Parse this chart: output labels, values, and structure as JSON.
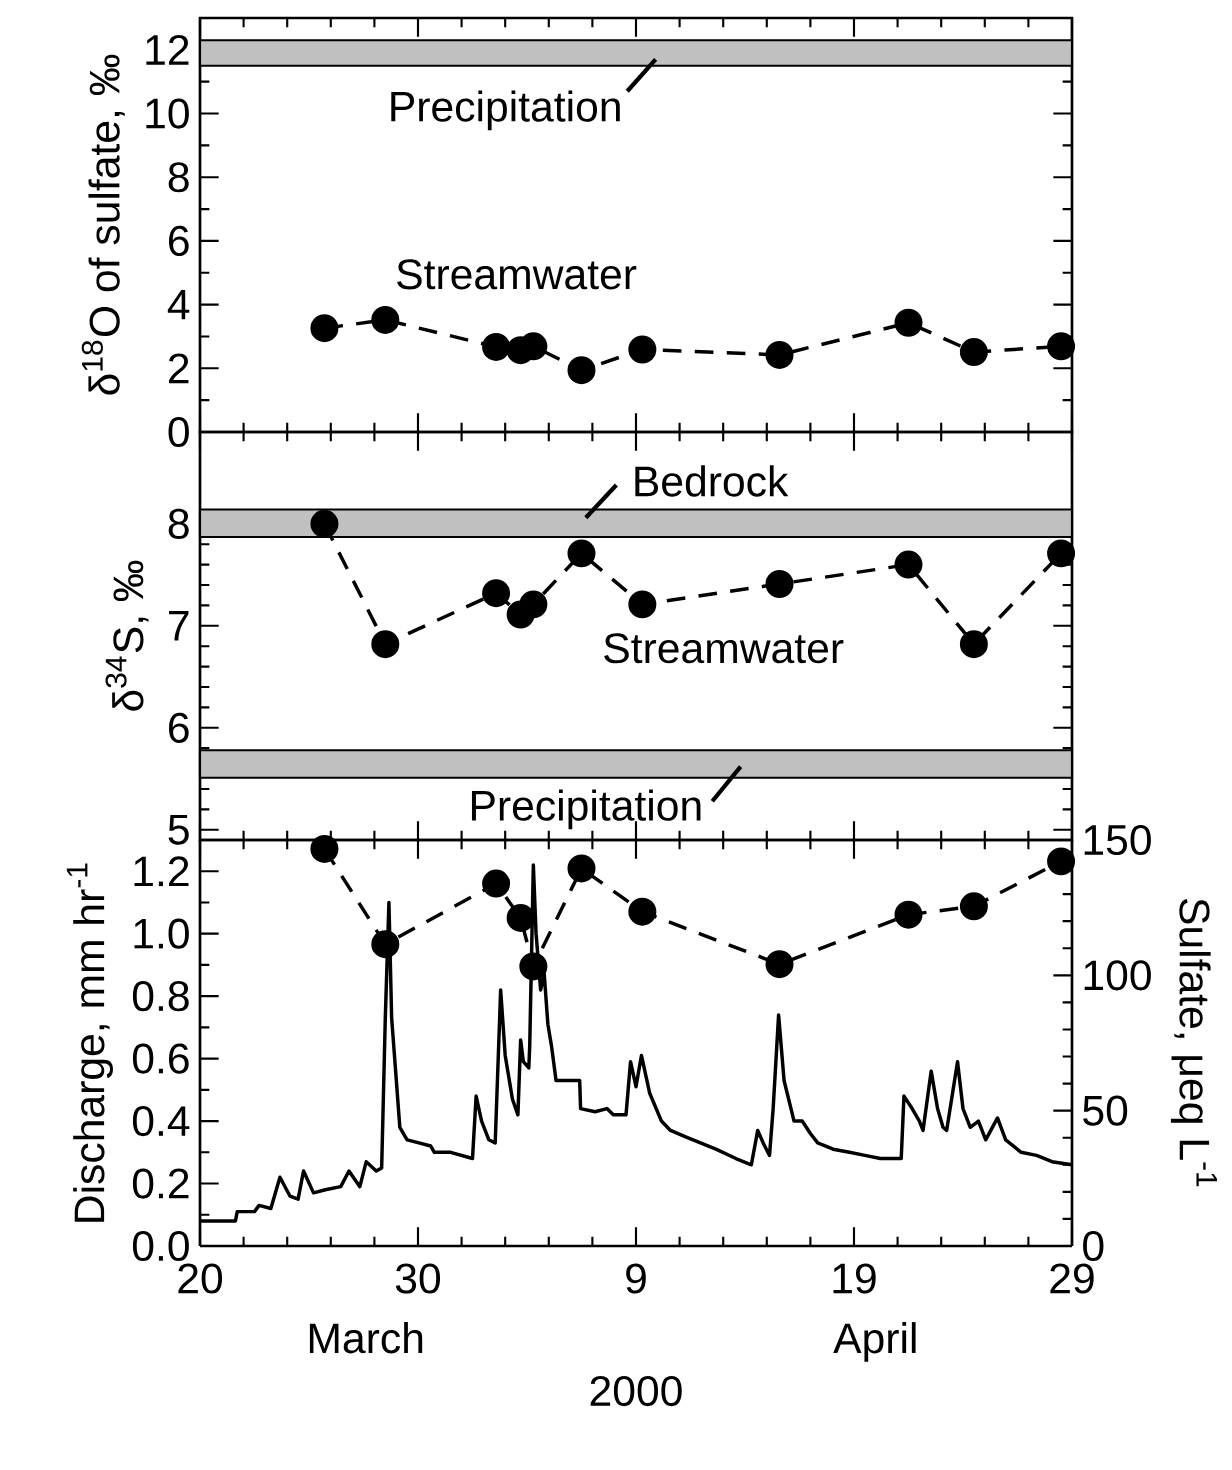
{
  "chart_data": [
    {
      "type": "line",
      "ylabel": "δ$^{18}$O of sulfate, ‰",
      "xlim": [
        "2000-03-20",
        "2000-04-29"
      ],
      "xticks": [
        {
          "value": "2000-03-20",
          "label": null
        },
        {
          "value": "2000-03-30",
          "label": null
        },
        {
          "value": "2000-04-09",
          "label": null
        },
        {
          "value": "2000-04-19",
          "label": null
        },
        {
          "value": "2000-04-29",
          "label": null
        }
      ],
      "ylim": [
        0,
        13
      ],
      "yticks": [
        0,
        2,
        4,
        6,
        8,
        10,
        12
      ],
      "tick_labels": "y",
      "marker": "circle",
      "line_style": "dashed",
      "bands": [
        {
          "axis": "y",
          "from": 11.5,
          "to": 12.3,
          "label": "Precipitation",
          "color": "#c0c0c0"
        }
      ],
      "series": [
        {
          "name": "Streamwater",
          "color": "#000000",
          "x": [
            "2000-03-25T17:00",
            "2000-03-28T12:00",
            "2000-04-02T14:00",
            "2000-04-03T17:00",
            "2000-04-04T07:00",
            "2000-04-06T12:00",
            "2000-04-09T07:00",
            "2000-04-15T14:00",
            "2000-04-21T12:00",
            "2000-04-24T12:00",
            "2000-04-28T12:00"
          ],
          "values": [
            3.26,
            3.52,
            2.67,
            2.57,
            2.69,
            1.94,
            2.59,
            2.42,
            3.43,
            2.51,
            2.69
          ]
        }
      ]
    },
    {
      "type": "line",
      "ylabel": "δ$^{34}$S, ‰",
      "xlim": [
        "2000-03-20",
        "2000-04-29"
      ],
      "xticks": [
        {
          "value": "2000-03-20",
          "label": null
        },
        {
          "value": "2000-03-30",
          "label": null
        },
        {
          "value": "2000-04-09",
          "label": null
        },
        {
          "value": "2000-04-19",
          "label": null
        },
        {
          "value": "2000-04-29",
          "label": null
        }
      ],
      "ylim": [
        4.9,
        8.9
      ],
      "yticks": [
        5,
        6,
        7,
        8
      ],
      "tick_labels": "y",
      "marker": "circle",
      "line_style": "dashed",
      "bands": [
        {
          "axis": "y",
          "from": 7.87,
          "to": 8.14,
          "label": "Bedrock",
          "color": "#c0c0c0"
        },
        {
          "axis": "y",
          "from": 5.51,
          "to": 5.78,
          "label": "Precipitation",
          "color": "#c0c0c0"
        }
      ],
      "series": [
        {
          "name": "Streamwater",
          "color": "#000000",
          "x": [
            "2000-03-25T17:00",
            "2000-03-28T12:00",
            "2000-04-02T14:00",
            "2000-04-03T17:00",
            "2000-04-04T07:00",
            "2000-04-06T12:00",
            "2000-04-09T07:00",
            "2000-04-15T14:00",
            "2000-04-21T12:00",
            "2000-04-24T12:00",
            "2000-04-28T12:00"
          ],
          "values": [
            8.0,
            6.82,
            7.32,
            7.11,
            7.21,
            7.71,
            7.21,
            7.41,
            7.6,
            6.82,
            7.71
          ]
        }
      ]
    },
    {
      "type": "line",
      "xlabel": "2000",
      "ylabel": "Discharge, mm hr$^{-1}$",
      "y2label": "Sulfate, μeq L$^{-1}$",
      "xlim": [
        "2000-03-20",
        "2000-04-29"
      ],
      "xticks": [
        {
          "value": "2000-03-20",
          "label": "20"
        },
        {
          "value": "2000-03-30",
          "label": "30"
        },
        {
          "value": "2000-04-09",
          "label": "9"
        },
        {
          "value": "2000-04-19",
          "label": "19"
        },
        {
          "value": "2000-04-29",
          "label": "29"
        }
      ],
      "ylim": [
        0,
        1.3
      ],
      "yticks": [
        {
          "value": 0,
          "label": "0.0"
        },
        {
          "value": 0.2,
          "label": "0.2"
        },
        {
          "value": 0.4,
          "label": "0.4"
        },
        {
          "value": 0.6,
          "label": "0.6"
        },
        {
          "value": 0.8,
          "label": "0.8"
        },
        {
          "value": 1.0,
          "label": "1.0"
        },
        {
          "value": 1.2,
          "label": "1.2"
        }
      ],
      "y2lim": [
        0,
        150
      ],
      "y2ticks": [
        0,
        50,
        100,
        150
      ],
      "annotations": [
        "March",
        "April"
      ],
      "series": [
        {
          "color": "#000000",
          "marker": "none",
          "line_style": "solid",
          "x": [
            "2000-03-20T00:00",
            "2000-03-21T15:00",
            "2000-03-21T17:00",
            "2000-03-22T12:00",
            "2000-03-22T17:00",
            "2000-03-23T06:00",
            "2000-03-23T16:00",
            "2000-03-24T03:00",
            "2000-03-24T12:00",
            "2000-03-24T18:00",
            "2000-03-25T05:00",
            "2000-03-25T18:00",
            "2000-03-26T11:00",
            "2000-03-26T20:00",
            "2000-03-27T08:00",
            "2000-03-27T15:00",
            "2000-03-28T02:00",
            "2000-03-28T08:00",
            "2000-03-28T12:00",
            "2000-03-28T16:00",
            "2000-03-28T19:00",
            "2000-03-29T04:00",
            "2000-03-29T12:00",
            "2000-03-30T01:00",
            "2000-03-30T14:00",
            "2000-03-30T18:00",
            "2000-03-31T12:00",
            "2000-04-01T12:00",
            "2000-04-01T16:00",
            "2000-04-01T22:00",
            "2000-04-02T06:00",
            "2000-04-02T13:00",
            "2000-04-02T19:00",
            "2000-04-03T00:00",
            "2000-04-03T08:00",
            "2000-04-03T14:00",
            "2000-04-03T17:00",
            "2000-04-03T20:00",
            "2000-04-04T02:00",
            "2000-04-04T03:00",
            "2000-04-04T07:00",
            "2000-04-04T10:00",
            "2000-04-04T15:00",
            "2000-04-04T19:00",
            "2000-04-04T23:00",
            "2000-04-05T03:00",
            "2000-04-05T08:00",
            "2000-04-05T21:00",
            "2000-04-06T10:00",
            "2000-04-06T11:00",
            "2000-04-07T03:00",
            "2000-04-07T16:00",
            "2000-04-07T23:00",
            "2000-04-08T13:00",
            "2000-04-08T18:00",
            "2000-04-09T00:00",
            "2000-04-09T06:00",
            "2000-04-09T15:00",
            "2000-04-10T04:00",
            "2000-04-10T14:00",
            "2000-04-11T06:00",
            "2000-04-11T23:00",
            "2000-04-12T16:00",
            "2000-04-13T14:00",
            "2000-04-14T07:00",
            "2000-04-14T14:00",
            "2000-04-14T20:00",
            "2000-04-15T03:00",
            "2000-04-15T07:00",
            "2000-04-15T13:00",
            "2000-04-15T19:00",
            "2000-04-16T06:00",
            "2000-04-16T15:00",
            "2000-04-17T00:00",
            "2000-04-17T08:00",
            "2000-04-18T01:00",
            "2000-04-18T19:00",
            "2000-04-19T12:00",
            "2000-04-20T05:00",
            "2000-04-20T22:00",
            "2000-04-21T04:00",
            "2000-04-21T07:00",
            "2000-04-21T16:00",
            "2000-04-22T00:00",
            "2000-04-22T04:00",
            "2000-04-22T13:00",
            "2000-04-22T20:00",
            "2000-04-23T02:00",
            "2000-04-23T06:00",
            "2000-04-23T18:00",
            "2000-04-24T00:00",
            "2000-04-24T08:00",
            "2000-04-24T17:00",
            "2000-04-25T01:00",
            "2000-04-25T14:00",
            "2000-04-25T23:00",
            "2000-04-26T16:00",
            "2000-04-27T09:00",
            "2000-04-28T02:00",
            "2000-04-29T00:00"
          ],
          "values": [
            0.08,
            0.08,
            0.11,
            0.11,
            0.13,
            0.12,
            0.22,
            0.16,
            0.15,
            0.24,
            0.17,
            0.18,
            0.19,
            0.24,
            0.19,
            0.27,
            0.24,
            0.25,
            0.73,
            1.1,
            0.73,
            0.38,
            0.34,
            0.33,
            0.32,
            0.3,
            0.3,
            0.28,
            0.48,
            0.4,
            0.34,
            0.33,
            0.82,
            0.61,
            0.47,
            0.42,
            0.66,
            0.59,
            0.57,
            0.64,
            1.22,
            1.0,
            0.82,
            0.87,
            0.71,
            0.64,
            0.53,
            0.53,
            0.53,
            0.44,
            0.43,
            0.44,
            0.42,
            0.42,
            0.59,
            0.51,
            0.61,
            0.49,
            0.4,
            0.37,
            0.35,
            0.33,
            0.31,
            0.28,
            0.26,
            0.37,
            0.33,
            0.29,
            0.44,
            0.74,
            0.53,
            0.4,
            0.4,
            0.36,
            0.33,
            0.31,
            0.3,
            0.29,
            0.28,
            0.28,
            0.28,
            0.48,
            0.44,
            0.4,
            0.37,
            0.56,
            0.44,
            0.38,
            0.37,
            0.59,
            0.44,
            0.38,
            0.4,
            0.34,
            0.41,
            0.34,
            0.3,
            0.29,
            0.27,
            0.26
          ]
        },
        {
          "color": "#000000",
          "axis": "y2",
          "marker": "circle",
          "line_style": "dashed",
          "x": [
            "2000-03-25T17:00",
            "2000-03-28T12:00",
            "2000-04-02T14:00",
            "2000-04-03T17:00",
            "2000-04-04T07:00",
            "2000-04-06T12:00",
            "2000-04-09T07:00",
            "2000-04-15T14:00",
            "2000-04-21T12:00",
            "2000-04-24T12:00",
            "2000-04-28T12:00"
          ],
          "values": [
            146.7,
            111.5,
            133.9,
            121.2,
            103.3,
            139.5,
            123.5,
            104.1,
            122.4,
            125.5,
            142.1
          ]
        }
      ]
    }
  ]
}
